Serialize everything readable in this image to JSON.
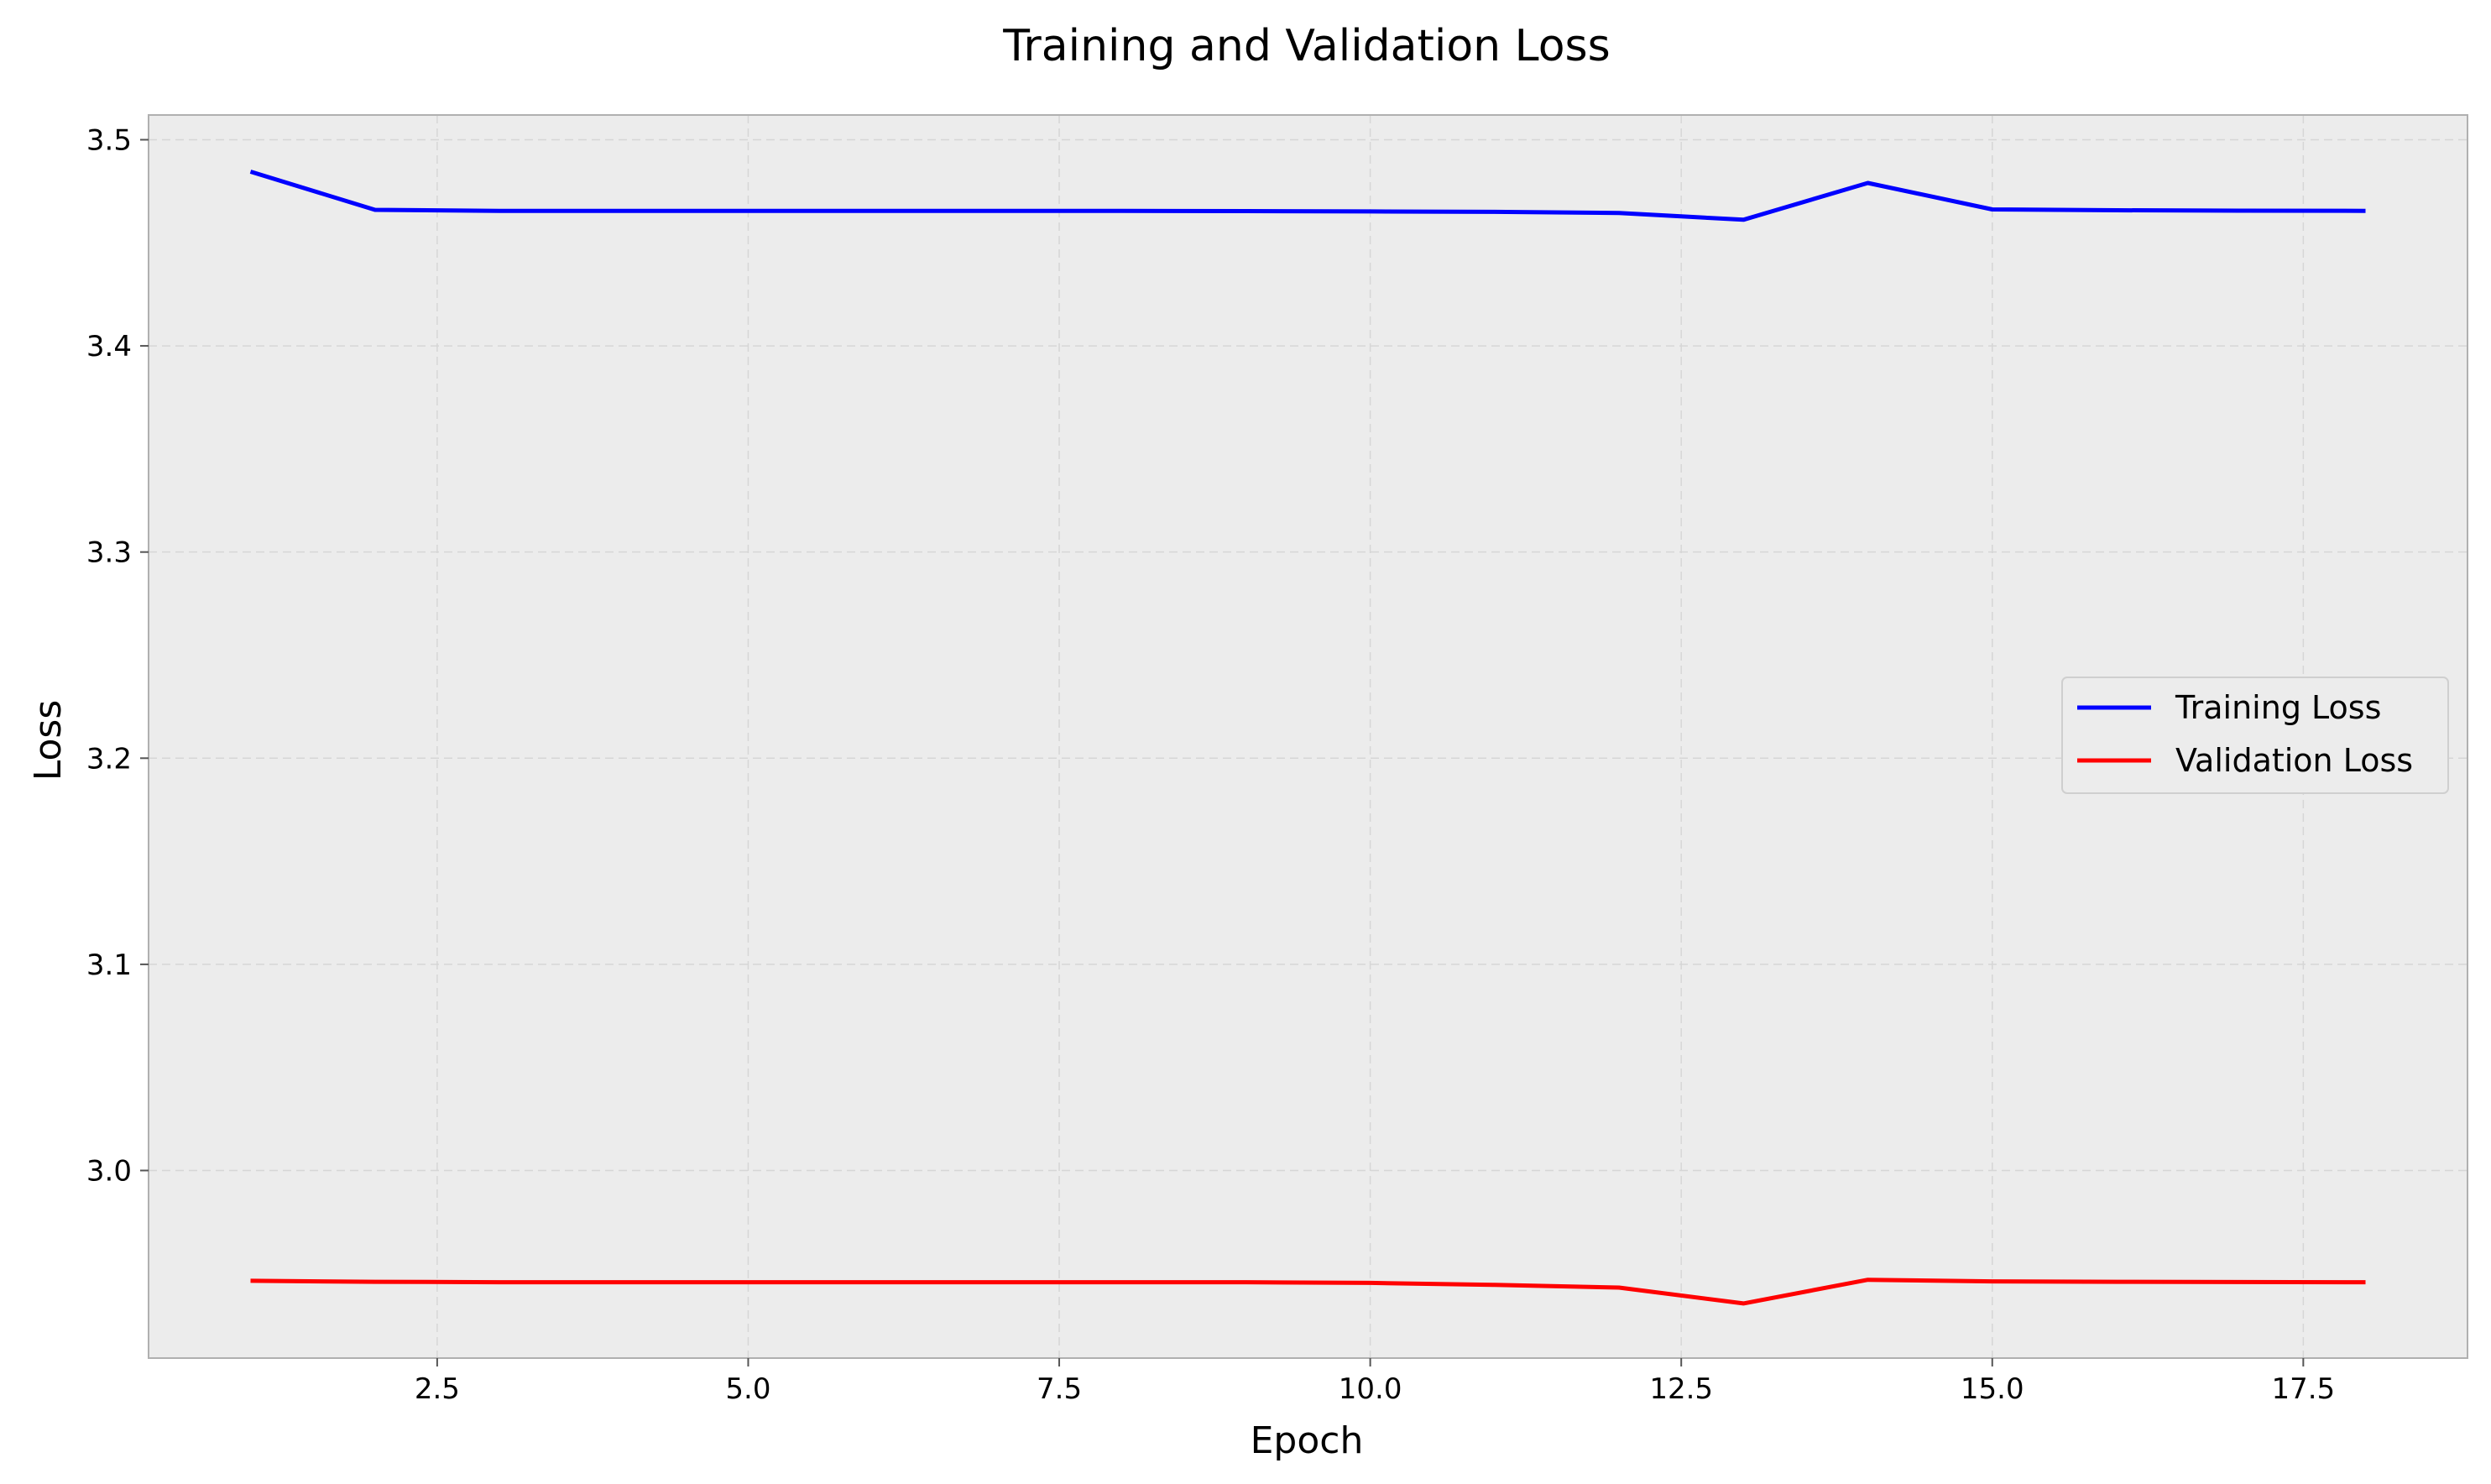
{
  "chart_data": {
    "type": "line",
    "title": "Training and Validation Loss",
    "xlabel": "Epoch",
    "ylabel": "Loss",
    "xlim": [
      0.18,
      18.82
    ],
    "ylim": [
      2.909,
      3.512
    ],
    "xticks": [
      2.5,
      5.0,
      7.5,
      10.0,
      12.5,
      15.0,
      17.5
    ],
    "xtick_labels": [
      "2.5",
      "5.0",
      "7.5",
      "10.0",
      "12.5",
      "15.0",
      "17.5"
    ],
    "yticks": [
      3.0,
      3.1,
      3.2,
      3.3,
      3.4,
      3.5
    ],
    "ytick_labels": [
      "3.0",
      "3.1",
      "3.2",
      "3.3",
      "3.4",
      "3.5"
    ],
    "grid": true,
    "legend_position": "center-right",
    "x": [
      1,
      2,
      3,
      4,
      5,
      6,
      7,
      8,
      9,
      10,
      11,
      12,
      13,
      14,
      15,
      16,
      17,
      18
    ],
    "series": [
      {
        "name": "Training Loss",
        "color": "#0000ff",
        "values": [
          3.4845,
          3.466,
          3.4655,
          3.4655,
          3.4655,
          3.4655,
          3.4655,
          3.4655,
          3.4654,
          3.4652,
          3.465,
          3.4645,
          3.4612,
          3.479,
          3.4662,
          3.4658,
          3.4656,
          3.4655
        ]
      },
      {
        "name": "Validation Loss",
        "color": "#ff0000",
        "values": [
          2.9465,
          2.946,
          2.9458,
          2.9458,
          2.9458,
          2.9458,
          2.9458,
          2.9458,
          2.9458,
          2.9455,
          2.9445,
          2.9432,
          2.9355,
          2.947,
          2.9462,
          2.946,
          2.9459,
          2.9458
        ]
      }
    ]
  }
}
